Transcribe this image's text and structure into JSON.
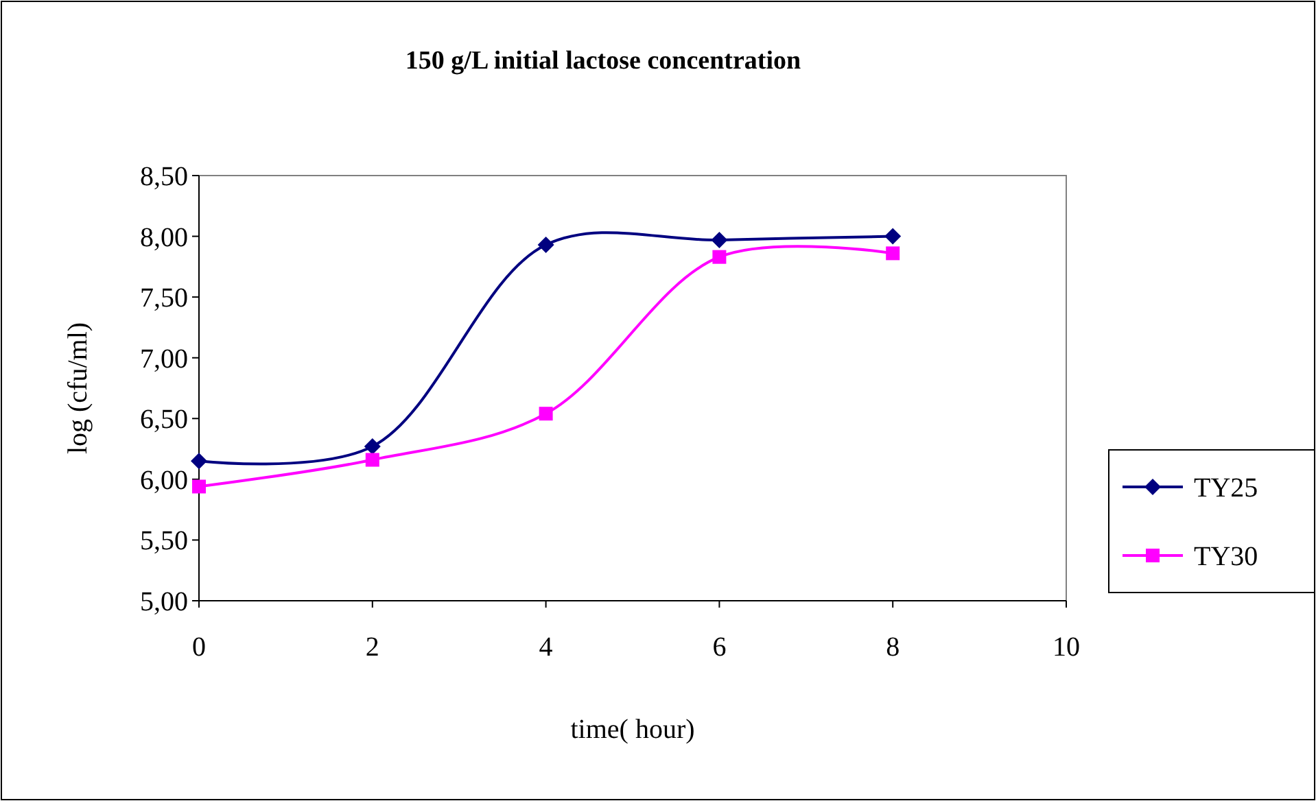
{
  "chart_data": {
    "type": "line",
    "title": "150 g/L initial lactose concentration",
    "xlabel": "time( hour)",
    "ylabel": "log (cfu/ml)",
    "x": [
      0,
      2,
      4,
      6,
      8
    ],
    "series": [
      {
        "name": "TY25",
        "color": "#000080",
        "values": [
          6.15,
          6.27,
          7.93,
          7.97,
          8.0
        ],
        "marker": "diamond"
      },
      {
        "name": "TY30",
        "color": "#ff00ff",
        "values": [
          5.94,
          6.16,
          6.54,
          7.83,
          7.86
        ],
        "marker": "square"
      }
    ],
    "xlim": [
      0,
      10
    ],
    "xticks": [
      0,
      2,
      4,
      6,
      8,
      10
    ],
    "ylim": [
      5,
      8.5
    ],
    "yticks": [
      {
        "value": 5,
        "label": "5,00"
      },
      {
        "value": 5.5,
        "label": "5,50"
      },
      {
        "value": 6,
        "label": "6,00"
      },
      {
        "value": 6.5,
        "label": "6,50"
      },
      {
        "value": 7,
        "label": "7,00"
      },
      {
        "value": 7.5,
        "label": "7,50"
      },
      {
        "value": 8,
        "label": "8,00"
      },
      {
        "value": 8.5,
        "label": "8,50"
      }
    ],
    "grid": false,
    "legend": "right",
    "line_style": "solid"
  }
}
